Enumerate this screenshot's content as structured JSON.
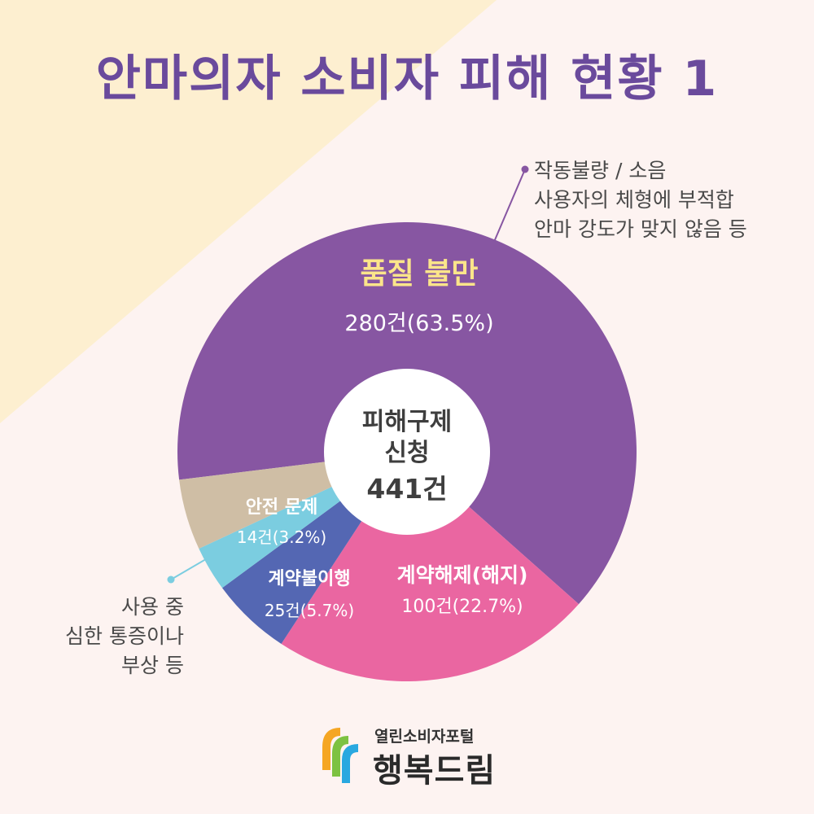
{
  "title": "안마의자 소비자 피해 현황 1",
  "chart_data": {
    "type": "pie",
    "center_label": [
      "피해구제",
      "신청",
      "441건"
    ],
    "slices": [
      {
        "category": "품질 불만",
        "value_text": "280건(63.5%)",
        "value": 280,
        "percent": 63.5,
        "color": "#8756a2",
        "label_color": "#fbe58a"
      },
      {
        "category": "계약해제(해지)",
        "value_text": "100건(22.7%)",
        "value": 100,
        "percent": 22.7,
        "color": "#ea66a1",
        "label_color": "#ffffff"
      },
      {
        "category": "계약불이행",
        "value_text": "25건(5.7%)",
        "value": 25,
        "percent": 5.7,
        "color": "#5467b3",
        "label_color": "#ffffff"
      },
      {
        "category": "안전 문제",
        "value_text": "14건(3.2%)",
        "value": 14,
        "percent": 3.2,
        "color": "#7bcde0",
        "label_color": "#ffffff"
      },
      {
        "category": "",
        "value_text": "",
        "value": 22,
        "percent": 4.9,
        "color": "#cfbea5",
        "label_color": "#ffffff"
      }
    ]
  },
  "callouts": {
    "quality": [
      "작동불량 / 소음",
      "사용자의 체형에 부적합",
      "안마 강도가 맞지 않음 등"
    ],
    "safety": [
      "사용 중",
      "심한 통증이나",
      "부상 등"
    ]
  },
  "logo": {
    "subtitle": "열린소비자포털",
    "name": "행복드림"
  },
  "colors": {
    "background": "#fdf3f1",
    "triangle": "#fdefd0",
    "title": "#6a4a9c"
  }
}
